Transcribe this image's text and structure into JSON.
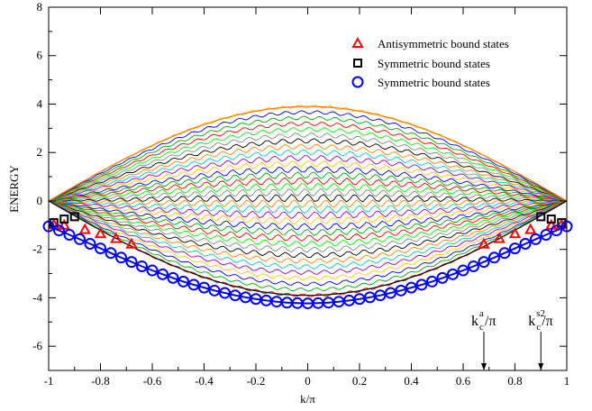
{
  "chart_data": {
    "type": "line",
    "title": "",
    "xlabel": "k/π",
    "ylabel": "ENERGY",
    "xlim": [
      -1,
      1
    ],
    "ylim": [
      -7,
      8
    ],
    "x_ticks": [
      "-1",
      "-0.8",
      "-0.6",
      "-0.4",
      "-0.2",
      "0",
      "0.2",
      "0.4",
      "0.6",
      "0.8",
      "1"
    ],
    "y_ticks": [
      "-6",
      "-4",
      "-2",
      "0",
      "2",
      "4",
      "6",
      "8"
    ],
    "grid": false,
    "legend_position": "top-right",
    "band": {
      "description_values": "continuum of scattering-state curves E(k); outer envelopes",
      "upper_edge_at_k0": 3.9,
      "lower_edge_at_k0": -3.9,
      "value_at_k_pm1": 0,
      "curve_colors": [
        "#ff0000",
        "#00aa00",
        "#0000ff",
        "#ffcc00",
        "#aa00aa",
        "#00cccc",
        "#ff8800",
        "#000000",
        "#888888",
        "#00ff00"
      ]
    },
    "series": [
      {
        "name": "Antisymmetric bound states",
        "marker": "triangle",
        "color": "#ff0000",
        "x": [
          -0.98,
          -0.94,
          -0.86,
          -0.8,
          -0.74,
          -0.68,
          0.68,
          0.74,
          0.8,
          0.86,
          0.94,
          0.98
        ],
        "y": [
          -0.98,
          -1.0,
          -1.18,
          -1.35,
          -1.55,
          -1.78,
          -1.78,
          -1.55,
          -1.35,
          -1.18,
          -1.0,
          -0.98
        ]
      },
      {
        "name": "Symmetric bound states",
        "marker": "square",
        "color": "#000000",
        "x": [
          -0.98,
          -0.94,
          -0.9,
          0.9,
          0.94,
          0.98
        ],
        "y": [
          -0.9,
          -0.75,
          -0.65,
          -0.65,
          -0.75,
          -0.9
        ]
      },
      {
        "name": "Symmetric bound states",
        "marker": "circle",
        "color": "#0000ff",
        "x": [
          -1.0,
          -0.96,
          -0.92,
          -0.88,
          -0.84,
          -0.8,
          -0.76,
          -0.72,
          -0.68,
          -0.64,
          -0.6,
          -0.56,
          -0.52,
          -0.48,
          -0.44,
          -0.4,
          -0.36,
          -0.32,
          -0.28,
          -0.24,
          -0.2,
          -0.16,
          -0.12,
          -0.08,
          -0.04,
          0.0,
          0.04,
          0.08,
          0.12,
          0.16,
          0.2,
          0.24,
          0.28,
          0.32,
          0.36,
          0.4,
          0.44,
          0.48,
          0.52,
          0.56,
          0.6,
          0.64,
          0.68,
          0.72,
          0.76,
          0.8,
          0.84,
          0.88,
          0.92,
          0.96,
          1.0
        ],
        "y": [
          -1.05,
          -1.22,
          -1.4,
          -1.58,
          -1.77,
          -1.96,
          -2.15,
          -2.34,
          -2.52,
          -2.7,
          -2.87,
          -3.03,
          -3.18,
          -3.33,
          -3.46,
          -3.58,
          -3.7,
          -3.8,
          -3.9,
          -3.98,
          -4.05,
          -4.11,
          -4.16,
          -4.2,
          -4.22,
          -4.23,
          -4.22,
          -4.2,
          -4.16,
          -4.11,
          -4.05,
          -3.98,
          -3.9,
          -3.8,
          -3.7,
          -3.58,
          -3.46,
          -3.33,
          -3.18,
          -3.03,
          -2.87,
          -2.7,
          -2.52,
          -2.34,
          -2.15,
          -1.96,
          -1.77,
          -1.58,
          -1.4,
          -1.22,
          -1.05
        ]
      }
    ],
    "annotations": [
      {
        "base": "k",
        "sup": "a",
        "sub": "c",
        "tail": "/π",
        "x": 0.68
      },
      {
        "base": "k",
        "sup": "s2",
        "sub": "c",
        "tail": "/π",
        "x": 0.9
      }
    ]
  }
}
